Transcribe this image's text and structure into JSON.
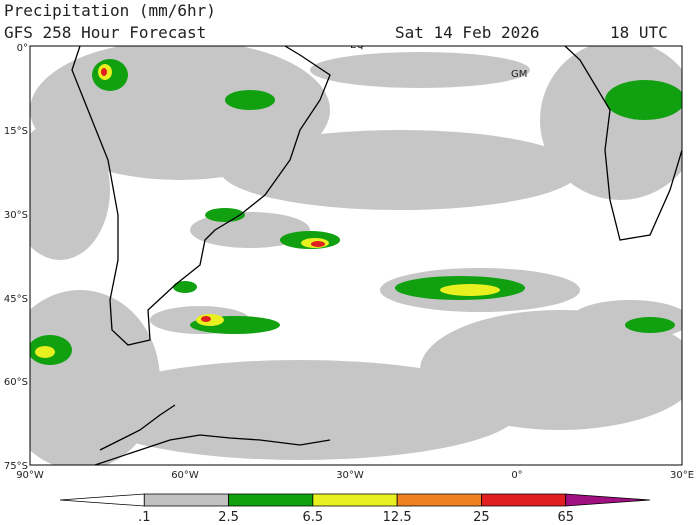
{
  "header": {
    "title": "Precipitation (mm/6hr)",
    "subtitle": "GFS 258 Hour Forecast",
    "date": "Sat 14 Feb 2026",
    "time": "18 UTC"
  },
  "map": {
    "labels": [
      "EQ",
      "GM"
    ],
    "lat_ticks": [
      "0°",
      "15°S",
      "30°S",
      "45°S",
      "60°S",
      "75°S"
    ],
    "lon_ticks": [
      "90°W",
      "60°W",
      "30°W",
      "0°",
      "30°E"
    ]
  },
  "colorbar": {
    "labels": [
      ".1",
      "2.5",
      "6.5",
      "12.5",
      "25",
      "65"
    ],
    "colors": [
      "#ffffff",
      "#c0c0c0",
      "#10a010",
      "#e8f020",
      "#f08020",
      "#e02020",
      "#a01080"
    ]
  }
}
